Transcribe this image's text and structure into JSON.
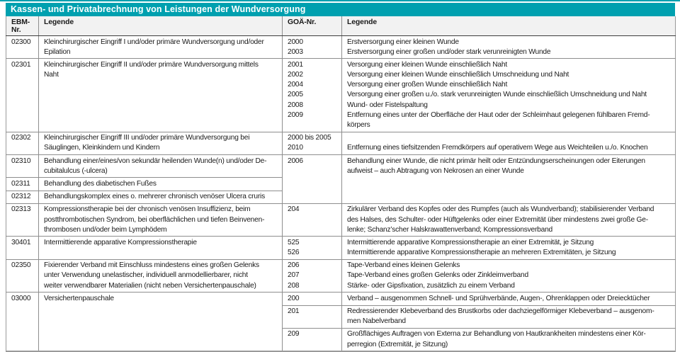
{
  "title": "Kassen- und Privatabrechnung von Leistungen der Wundversorgung",
  "colors": {
    "accent_teal": "#00a0af",
    "grid_gray": "#8e8e8e",
    "header_bg": "#f2f2f2"
  },
  "columns": {
    "ebm": "EBM-Nr.",
    "legende_ebm": "Legende",
    "goae": "GOÄ-Nr.",
    "legende_goae": "Legende"
  },
  "groups": [
    {
      "ebm": "02300",
      "ebm_text": [
        "Kleinchirurgischer Eingriff I und/oder primäre Wundversorgung und/oder",
        "Epilation"
      ],
      "goae": [
        "2000",
        "2003"
      ],
      "goae_text": [
        "Erstversorgung einer kleinen Wunde",
        "Erstversorgung einer großen und/oder stark verunreinigten Wunde"
      ]
    },
    {
      "ebm": "02301",
      "ebm_text": [
        "Kleinchirurgischer Eingriff II und/oder primäre Wundversorgung mittels",
        "Naht"
      ],
      "goae": [
        "2001",
        "2002",
        "2004",
        "2005",
        "2008",
        "2009"
      ],
      "goae_text": [
        "Versorgung einer kleinen Wunde einschließlich Naht",
        "Versorgung einer kleinen Wunde einschließlich Umschneidung und Naht",
        "Versorgung einer großen Wunde einschließlich Naht",
        "Versorgung einer großen u./o. stark verunreinigten Wunde einschließlich Umschneidung und Naht",
        "Wund- oder Fistelspaltung",
        "Entfernung eines unter der Oberfläche der Haut oder der Schleimhaut gelegenen fühlbaren Fremd-",
        "körpers"
      ]
    },
    {
      "ebm": "02302",
      "ebm_text": [
        "Kleinchirurgischer Eingriff III und/oder primäre Wundversorgung bei",
        "Säuglingen, Kleinkindern und Kindern"
      ],
      "goae": [
        "2000 bis 2005",
        "2010"
      ],
      "goae_text": [
        "",
        "Entfernung eines tiefsitzenden Fremdkörpers auf operativem Wege aus Weichteilen u./o. Knochen"
      ]
    },
    {
      "ebm": "02310",
      "ebm_text": [
        "Behandlung einer/eines/von sekundär heilenden Wunde(n) und/oder De-",
        "cubitalulcus (-ulcera)"
      ],
      "goae": [
        "2006"
      ],
      "goae_text": [
        "Behandlung einer Wunde, die nicht primär heilt oder Entzündungserscheinungen oder Eiterungen",
        "aufweist – auch Abtragung von Nekrosen an einer Wunde"
      ]
    },
    {
      "ebm": "02311",
      "ebm_text": [
        "Behandlung des diabetischen Fußes"
      ]
    },
    {
      "ebm": "02312",
      "ebm_text": [
        "Behandlungskomplex eines o. mehrerer chronisch venöser Ulcera cruris"
      ]
    },
    {
      "ebm": "02313",
      "ebm_text": [
        "Kompressionstherapie bei der chronisch venösen Insuffizienz, beim",
        "postthrombotischen Syndrom, bei oberflächlichen und tiefen Beinvenen-",
        "thrombosen und/oder beim Lymphödem"
      ],
      "goae": [
        "204"
      ],
      "goae_text": [
        "Zirkulärer Verband des Kopfes oder des Rumpfes (auch als Wundverband); stabilisierender Verband",
        "des Halses, des Schulter- oder Hüftgelenks oder einer Extremität über mindestens zwei große Ge-",
        "lenke; Schanz’scher Halskrawattenverband; Kompressionsverband"
      ]
    },
    {
      "ebm": "30401",
      "ebm_text": [
        "Intermittierende apparative Kompressionstherapie"
      ],
      "goae": [
        "525",
        "526"
      ],
      "goae_text": [
        "Intermittierende apparative Kompressionstherapie an einer Extremität, je Sitzung",
        "Intermittierende apparative Kompressionstherapie an mehreren Extremitäten, je Sitzung"
      ]
    },
    {
      "ebm": "02350",
      "ebm_text": [
        "Fixierender Verband mit Einschluss mindestens eines großen Gelenks",
        "unter Verwendung unelastischer, individuell anmodellierbarer, nicht",
        "weiter verwendbarer Materialien (nicht neben Versichertenpauschale)"
      ],
      "goae": [
        "206",
        "207",
        "208"
      ],
      "goae_text": [
        "Tape-Verband eines kleinen Gelenks",
        "Tape-Verband eines großen Gelenks oder Zinkleimverband",
        "Stärke- oder Gipsfixation, zusätzlich zu einem Verband"
      ]
    },
    {
      "ebm": "03000",
      "ebm_text": [
        "Versichertenpauschale"
      ],
      "subrows": [
        {
          "goae": "200",
          "goae_text": [
            "Verband – ausgenommen Schnell- und Sprühverbände, Augen-, Ohrenklappen oder Dreiecktücher"
          ]
        },
        {
          "goae": "201",
          "goae_text": [
            "Redressierender Klebeverband des Brustkorbs oder dachziegelförmiger Klebeverband – ausgenom-",
            "men Nabelverband"
          ]
        },
        {
          "goae": "209",
          "goae_text": [
            "Großflächiges Auftragen von Externa zur Behandlung von Hautkrankheiten mindestens einer Kör-",
            "perregion (Extremität, je Sitzung)"
          ]
        }
      ]
    }
  ]
}
